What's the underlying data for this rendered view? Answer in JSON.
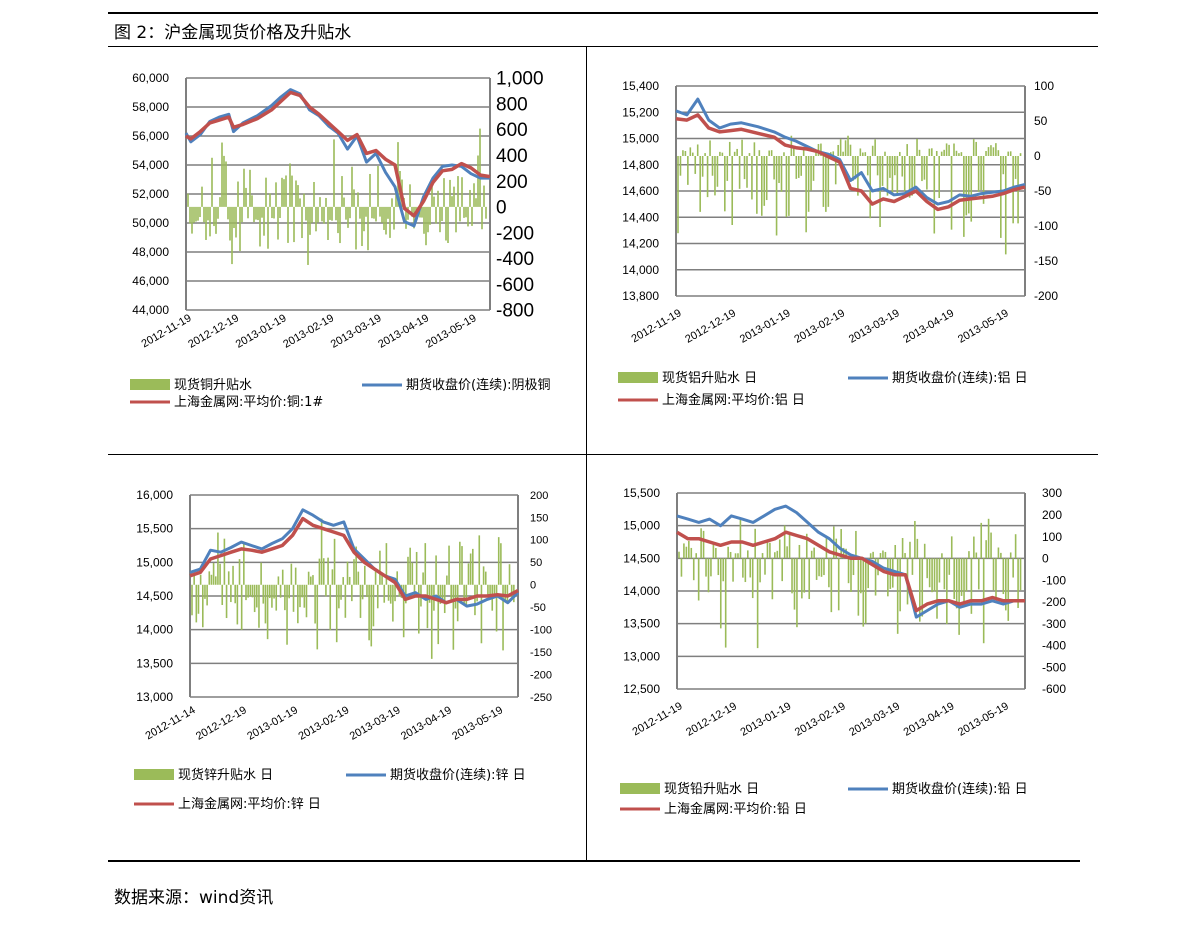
{
  "figure_title": "图 2：沪金属现货价格及升贴水",
  "source_note": "数据来源：wind资讯",
  "colors": {
    "premium_bar": "#9bbb59",
    "futures_line": "#4f81bd",
    "spot_line": "#c0504d",
    "grid": "#7f7f7f"
  },
  "chart_data": [
    {
      "id": "copper",
      "type": "line",
      "x_labels": [
        "2012-11-19",
        "2012-12-19",
        "2013-01-19",
        "2013-02-19",
        "2013-03-19",
        "2013-04-19",
        "2013-05-19"
      ],
      "y_left": {
        "min": 44000,
        "max": 60000,
        "step": 2000,
        "ticks": [
          "44,000",
          "46,000",
          "48,000",
          "50,000",
          "52,000",
          "54,000",
          "56,000",
          "58,000",
          "60,000"
        ]
      },
      "y_right": {
        "min": -800,
        "max": 1000,
        "step": 200,
        "ticks": [
          "-800",
          "-600",
          "-400",
          "-200",
          "0",
          "200",
          "400",
          "600",
          "800",
          "1,000"
        ]
      },
      "legend": {
        "premium": "现货铜升贴水",
        "futures": "期货收盘价(连续):阴极铜",
        "spot": "上海金属网:平均价:铜:1#"
      },
      "series": [
        {
          "name": "期货收盘价(连续):阴极铜",
          "axis": "left",
          "x": [
            0,
            0.1,
            0.3,
            0.5,
            0.7,
            0.9,
            1.0,
            1.2,
            1.5,
            1.8,
            2.0,
            2.2,
            2.4,
            2.6,
            2.8,
            3.0,
            3.2,
            3.4,
            3.6,
            3.8,
            4.0,
            4.2,
            4.4,
            4.6,
            4.8,
            5.0,
            5.2,
            5.4,
            5.6,
            5.8,
            6.0,
            6.2,
            6.4
          ],
          "values": [
            56200,
            55600,
            56100,
            57000,
            57300,
            57500,
            56300,
            56900,
            57400,
            58100,
            58700,
            59200,
            58900,
            57800,
            57400,
            56700,
            56200,
            55100,
            56000,
            54200,
            54800,
            53500,
            52500,
            50100,
            49800,
            51800,
            53100,
            53900,
            54000,
            53900,
            53400,
            53100,
            53100
          ]
        },
        {
          "name": "上海金属网:平均价:铜:1#",
          "axis": "left",
          "x": [
            0,
            0.1,
            0.3,
            0.5,
            0.7,
            0.9,
            1.0,
            1.2,
            1.5,
            1.8,
            2.0,
            2.2,
            2.4,
            2.6,
            2.8,
            3.0,
            3.2,
            3.4,
            3.6,
            3.8,
            4.0,
            4.2,
            4.4,
            4.6,
            4.8,
            5.0,
            5.2,
            5.4,
            5.6,
            5.8,
            6.0,
            6.2,
            6.4
          ],
          "values": [
            56000,
            55800,
            56300,
            56900,
            57100,
            57300,
            56600,
            56800,
            57200,
            57800,
            58400,
            59000,
            58800,
            58000,
            57500,
            56900,
            56300,
            55700,
            56100,
            54800,
            55000,
            54400,
            54000,
            51000,
            50500,
            51500,
            52800,
            53600,
            53700,
            54100,
            53800,
            53300,
            53200
          ]
        },
        {
          "name": "现货铜升贴水",
          "axis": "right",
          "type": "bar",
          "count": 150,
          "amplitude": [
            -500,
            650
          ],
          "base": 0
        }
      ]
    },
    {
      "id": "aluminum",
      "type": "line",
      "x_labels": [
        "2012-11-19",
        "2012-12-19",
        "2013-01-19",
        "2013-02-19",
        "2013-03-19",
        "2013-04-19",
        "2013-05-19"
      ],
      "y_left": {
        "min": 13800,
        "max": 15400,
        "step": 200,
        "ticks": [
          "13,800",
          "14,000",
          "14,200",
          "14,400",
          "14,600",
          "14,800",
          "15,000",
          "15,200",
          "15,400"
        ]
      },
      "y_right": {
        "min": -200,
        "max": 100,
        "step": 50,
        "ticks": [
          "-200",
          "-150",
          "-100",
          "-50",
          "0",
          "50",
          "100"
        ]
      },
      "legend": {
        "premium": "现货铝升贴水 日",
        "futures": "期货收盘价(连续):铝 日",
        "spot": "上海金属网:平均价:铝 日"
      },
      "series": [
        {
          "name": "期货收盘价(连续):铝 日",
          "axis": "left",
          "x": [
            0,
            0.2,
            0.4,
            0.6,
            0.8,
            1.0,
            1.2,
            1.5,
            1.8,
            2.0,
            2.2,
            2.4,
            2.6,
            2.8,
            3.0,
            3.2,
            3.4,
            3.6,
            3.8,
            4.0,
            4.2,
            4.4,
            4.6,
            4.8,
            5.0,
            5.2,
            5.4,
            5.6,
            5.8,
            6.0,
            6.2,
            6.4
          ],
          "values": [
            15210,
            15180,
            15300,
            15140,
            15080,
            15110,
            15120,
            15090,
            15050,
            15010,
            14980,
            14940,
            14900,
            14880,
            14840,
            14680,
            14740,
            14600,
            14620,
            14570,
            14580,
            14630,
            14550,
            14500,
            14520,
            14570,
            14560,
            14580,
            14590,
            14600,
            14630,
            14650
          ]
        },
        {
          "name": "上海金属网:平均价:铝 日",
          "axis": "left",
          "x": [
            0,
            0.2,
            0.4,
            0.6,
            0.8,
            1.0,
            1.2,
            1.5,
            1.8,
            2.0,
            2.2,
            2.4,
            2.6,
            2.8,
            3.0,
            3.2,
            3.4,
            3.6,
            3.8,
            4.0,
            4.2,
            4.4,
            4.6,
            4.8,
            5.0,
            5.2,
            5.4,
            5.6,
            5.8,
            6.0,
            6.2,
            6.4
          ],
          "values": [
            15150,
            15140,
            15180,
            15080,
            15050,
            15060,
            15070,
            15040,
            15010,
            14950,
            14930,
            14920,
            14900,
            14860,
            14820,
            14620,
            14600,
            14500,
            14540,
            14520,
            14560,
            14600,
            14520,
            14460,
            14480,
            14530,
            14540,
            14550,
            14560,
            14580,
            14610,
            14630
          ]
        },
        {
          "name": "现货铝升贴水 日",
          "axis": "right",
          "type": "bar",
          "count": 140,
          "amplitude": [
            -165,
            40
          ],
          "base": 0
        }
      ]
    },
    {
      "id": "zinc",
      "type": "line",
      "x_labels": [
        "2012-11-14",
        "2012-12-19",
        "2013-01-19",
        "2013-02-19",
        "2013-03-19",
        "2013-04-19",
        "2013-05-19"
      ],
      "y_left": {
        "min": 13000,
        "max": 16000,
        "step": 500,
        "ticks": [
          "13,000",
          "13,500",
          "14,000",
          "14,500",
          "15,000",
          "15,500",
          "16,000"
        ]
      },
      "y_right": {
        "min": -250,
        "max": 200,
        "step": 50,
        "ticks": [
          "-250",
          "-200",
          "-150",
          "-100",
          "-50",
          "0",
          "50",
          "100",
          "150",
          "200"
        ]
      },
      "legend": {
        "premium": "现货锌升贴水 日",
        "futures": "期货收盘价(连续):锌 日",
        "spot": "上海金属网:平均价:锌 日"
      },
      "series": [
        {
          "name": "期货收盘价(连续):锌 日",
          "axis": "left",
          "x": [
            0,
            0.2,
            0.4,
            0.6,
            0.8,
            1.0,
            1.2,
            1.4,
            1.6,
            1.8,
            2.0,
            2.2,
            2.4,
            2.6,
            2.8,
            3.0,
            3.2,
            3.4,
            3.6,
            3.8,
            4.0,
            4.2,
            4.4,
            4.6,
            4.8,
            5.0,
            5.2,
            5.4,
            5.6,
            5.8,
            6.0,
            6.2,
            6.4
          ],
          "values": [
            14850,
            14900,
            15180,
            15150,
            15220,
            15300,
            15250,
            15200,
            15280,
            15350,
            15500,
            15780,
            15700,
            15600,
            15550,
            15600,
            15200,
            15050,
            14900,
            14800,
            14750,
            14500,
            14550,
            14450,
            14500,
            14400,
            14450,
            14350,
            14380,
            14450,
            14500,
            14400,
            14550
          ]
        },
        {
          "name": "上海金属网:平均价:锌 日",
          "axis": "left",
          "x": [
            0,
            0.2,
            0.4,
            0.6,
            0.8,
            1.0,
            1.2,
            1.4,
            1.6,
            1.8,
            2.0,
            2.2,
            2.4,
            2.6,
            2.8,
            3.0,
            3.2,
            3.4,
            3.6,
            3.8,
            4.0,
            4.2,
            4.4,
            4.6,
            4.8,
            5.0,
            5.2,
            5.4,
            5.6,
            5.8,
            6.0,
            6.2,
            6.4
          ],
          "values": [
            14800,
            14850,
            15050,
            15100,
            15150,
            15200,
            15180,
            15150,
            15200,
            15250,
            15400,
            15650,
            15550,
            15500,
            15450,
            15400,
            15150,
            15000,
            14900,
            14800,
            14700,
            14450,
            14500,
            14500,
            14450,
            14400,
            14450,
            14450,
            14500,
            14500,
            14520,
            14500,
            14580
          ]
        },
        {
          "name": "现货锌升贴水 日",
          "axis": "right",
          "type": "bar",
          "count": 150,
          "amplitude": [
            -170,
            170
          ],
          "base": 0
        }
      ]
    },
    {
      "id": "lead",
      "type": "line",
      "x_labels": [
        "2012-11-19",
        "2012-12-19",
        "2013-01-19",
        "2013-02-19",
        "2013-03-19",
        "2013-04-19",
        "2013-05-19"
      ],
      "y_left": {
        "min": 12500,
        "max": 15500,
        "step": 500,
        "ticks": [
          "12,500",
          "13,000",
          "13,500",
          "14,000",
          "14,500",
          "15,000",
          "15,500"
        ]
      },
      "y_right": {
        "min": -600,
        "max": 300,
        "step": 100,
        "ticks": [
          "-600",
          "-500",
          "-400",
          "-300",
          "-200",
          "-100",
          "0",
          "100",
          "200",
          "300"
        ]
      },
      "legend": {
        "premium": "现货铅升贴水 日",
        "futures": "期货收盘价(连续):铅 日",
        "spot": "上海金属网:平均价:铅 日"
      },
      "series": [
        {
          "name": "期货收盘价(连续):铅 日",
          "axis": "left",
          "x": [
            0,
            0.2,
            0.4,
            0.6,
            0.8,
            1.0,
            1.2,
            1.4,
            1.6,
            1.8,
            2.0,
            2.2,
            2.4,
            2.6,
            2.8,
            3.0,
            3.2,
            3.4,
            3.6,
            3.8,
            4.0,
            4.2,
            4.4,
            4.6,
            4.8,
            5.0,
            5.2,
            5.4,
            5.6,
            5.8,
            6.0,
            6.2,
            6.4
          ],
          "values": [
            15150,
            15100,
            15050,
            15100,
            15000,
            15150,
            15100,
            15050,
            15150,
            15250,
            15300,
            15200,
            15050,
            14900,
            14800,
            14650,
            14550,
            14500,
            14450,
            14350,
            14300,
            14250,
            13600,
            13700,
            13800,
            13850,
            13750,
            13800,
            13800,
            13850,
            13800,
            13850,
            13850
          ]
        },
        {
          "name": "上海金属网:平均价:铅 日",
          "axis": "left",
          "x": [
            0,
            0.2,
            0.4,
            0.6,
            0.8,
            1.0,
            1.2,
            1.4,
            1.6,
            1.8,
            2.0,
            2.2,
            2.4,
            2.6,
            2.8,
            3.0,
            3.2,
            3.4,
            3.6,
            3.8,
            4.0,
            4.2,
            4.4,
            4.6,
            4.8,
            5.0,
            5.2,
            5.4,
            5.6,
            5.8,
            6.0,
            6.2,
            6.4
          ],
          "values": [
            14900,
            14800,
            14800,
            14750,
            14700,
            14750,
            14750,
            14700,
            14750,
            14800,
            14900,
            14850,
            14800,
            14700,
            14600,
            14550,
            14500,
            14500,
            14400,
            14300,
            14250,
            14250,
            13700,
            13800,
            13850,
            13850,
            13800,
            13850,
            13850,
            13900,
            13850,
            13850,
            13850
          ]
        },
        {
          "name": "现货铅升贴水 日",
          "axis": "right",
          "type": "bar",
          "count": 140,
          "amplitude": [
            -500,
            230
          ],
          "base": 0
        }
      ]
    }
  ]
}
